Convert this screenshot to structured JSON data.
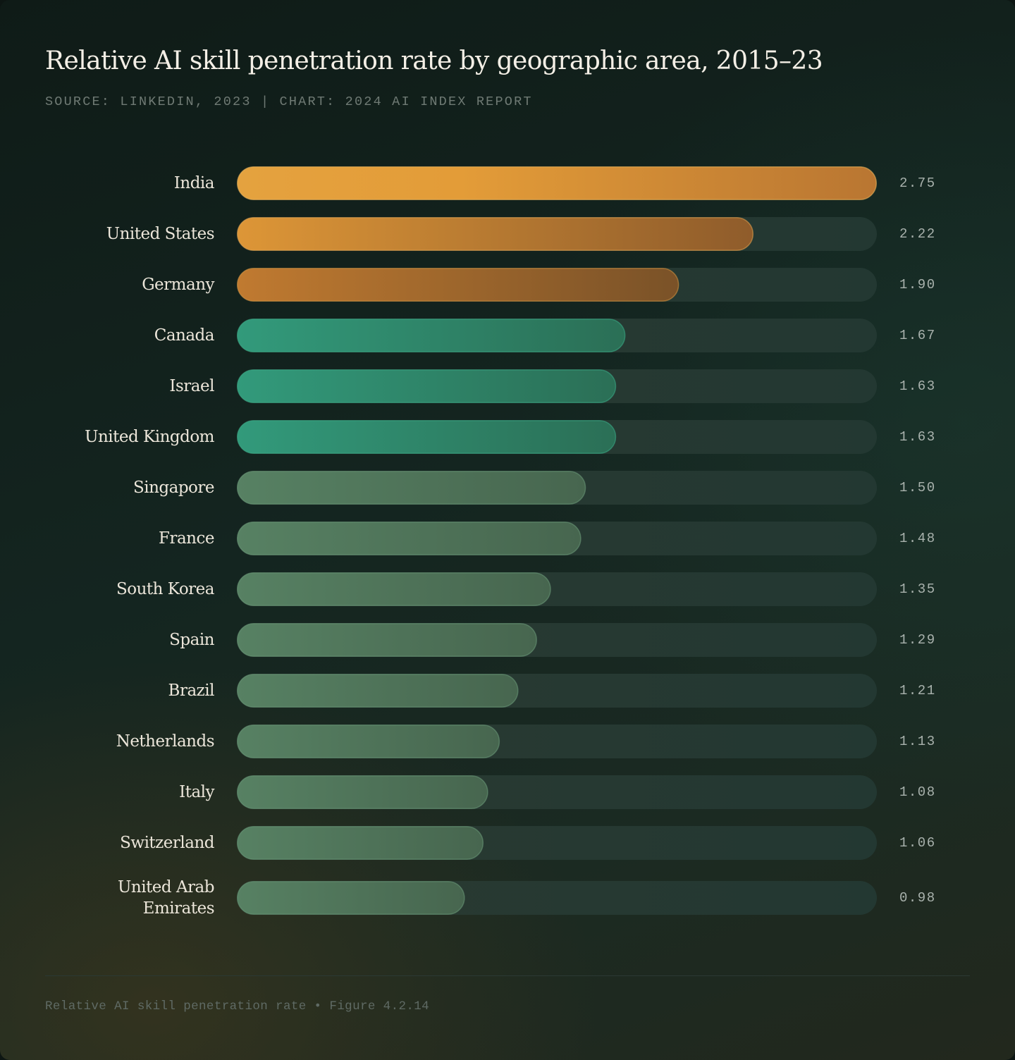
{
  "header": {
    "title": "Relative AI skill penetration rate by geographic area, 2015–23",
    "subtitle": "SOURCE: LINKEDIN, 2023 | CHART: 2024 AI INDEX REPORT"
  },
  "footer": {
    "caption": "Relative AI skill penetration rate • Figure 4.2.14"
  },
  "colors": {
    "tier_top": "#e0a03c",
    "tier_mid": "#2f9678",
    "tier_rest": "#4f7a60",
    "track": "#26352f"
  },
  "chart_data": {
    "type": "bar",
    "orientation": "horizontal",
    "title": "Relative AI skill penetration rate by geographic area, 2015–23",
    "categories": [
      "India",
      "United States",
      "Germany",
      "Canada",
      "Israel",
      "United Kingdom",
      "Singapore",
      "France",
      "South Korea",
      "Spain",
      "Brazil",
      "Netherlands",
      "Italy",
      "Switzerland",
      "United Arab Emirates"
    ],
    "values": [
      2.75,
      2.22,
      1.9,
      1.67,
      1.63,
      1.63,
      1.5,
      1.48,
      1.35,
      1.29,
      1.21,
      1.13,
      1.08,
      1.06,
      0.98
    ],
    "value_labels": [
      "2.75",
      "2.22",
      "1.90",
      "1.67",
      "1.63",
      "1.63",
      "1.50",
      "1.48",
      "1.35",
      "1.29",
      "1.21",
      "1.13",
      "1.08",
      "1.06",
      "0.98"
    ],
    "xlim": [
      0,
      2.75
    ],
    "grid": false,
    "legend": "none"
  }
}
